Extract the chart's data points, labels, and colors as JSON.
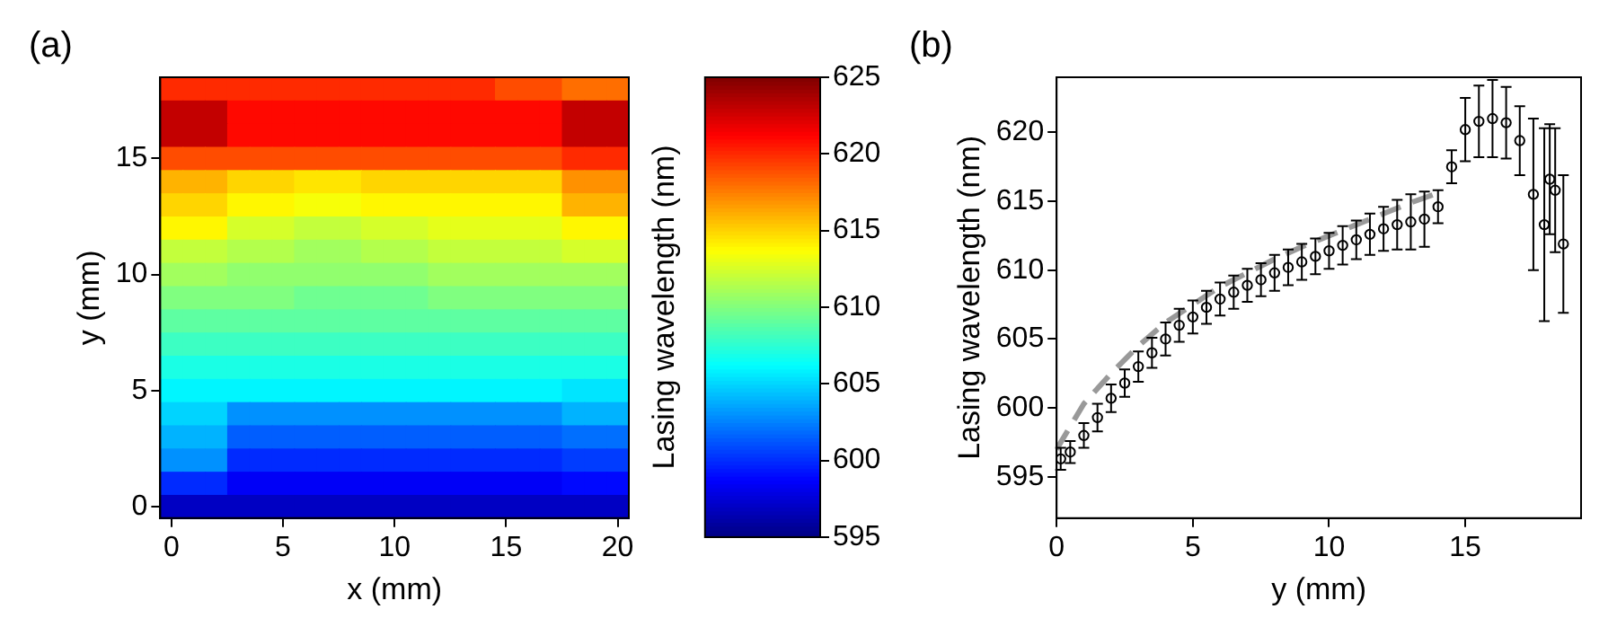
{
  "chart_data": [
    {
      "type": "heatmap",
      "annotations": [
        "(a)"
      ],
      "xlabel": "x (mm)",
      "ylabel": "y (mm)",
      "clabel": "Lasing wavelength (nm)",
      "categories": [
        "0",
        null,
        null,
        null,
        null,
        "5",
        null,
        null,
        null,
        null,
        "10",
        null,
        null,
        null,
        null,
        "15",
        null,
        null,
        null,
        null,
        "20"
      ],
      "y_categories": [
        null,
        null,
        null,
        "15",
        null,
        null,
        null,
        null,
        "10",
        null,
        null,
        null,
        null,
        "5",
        null,
        null,
        null,
        null,
        "0"
      ],
      "cells": [
        [
          620,
          620,
          620,
          620,
          620,
          620,
          620,
          620,
          620,
          620,
          620,
          620,
          620,
          620,
          620,
          619,
          619,
          619,
          618,
          618,
          618
        ],
        [
          623,
          623,
          623,
          621,
          621,
          621,
          621,
          621,
          621,
          621,
          621,
          621,
          621,
          621,
          621,
          621,
          621,
          621,
          623,
          623,
          623
        ],
        [
          623,
          623,
          623,
          621,
          621,
          621,
          621,
          621,
          621,
          621,
          621,
          621,
          621,
          621,
          621,
          621,
          621,
          621,
          623,
          623,
          623
        ],
        [
          619,
          619,
          619,
          619,
          619,
          619,
          619,
          619,
          619,
          619,
          619,
          619,
          619,
          619,
          619,
          619,
          619,
          619,
          620,
          620,
          620
        ],
        [
          616,
          616,
          616,
          615,
          615,
          615,
          614.5,
          614.5,
          614.5,
          615,
          615,
          615,
          615,
          615,
          615,
          615,
          615,
          615,
          617,
          617,
          617
        ],
        [
          615,
          615,
          615,
          614,
          614,
          614,
          613.5,
          613.5,
          613.5,
          614,
          614,
          614,
          614,
          614,
          614,
          614,
          614,
          614,
          616,
          616,
          616
        ],
        [
          614,
          614,
          614,
          612.5,
          612.5,
          612.5,
          612,
          612,
          612,
          612.5,
          612.5,
          612.5,
          613,
          613,
          613,
          613,
          613,
          613,
          614,
          614,
          614
        ],
        [
          612,
          612,
          612,
          611.5,
          611.5,
          611.5,
          611,
          611,
          611,
          611.5,
          611.5,
          611.5,
          612,
          612,
          612,
          612,
          612,
          612,
          612.5,
          612.5,
          612.5
        ],
        [
          611,
          611,
          611,
          610.5,
          610.5,
          610.5,
          610.5,
          610.5,
          610.5,
          610.5,
          610.5,
          610.5,
          611,
          611,
          611,
          611,
          611,
          611,
          611,
          611,
          611
        ],
        [
          610,
          610,
          610,
          610,
          610,
          610,
          609.5,
          609.5,
          609.5,
          609.5,
          609.5,
          609.5,
          610,
          610,
          610,
          610,
          610,
          610,
          610,
          610,
          610
        ],
        [
          609,
          609,
          609,
          609,
          609,
          609,
          609,
          609,
          609,
          609,
          609,
          609,
          609,
          609,
          609,
          609,
          609,
          609,
          609,
          609,
          609
        ],
        [
          608,
          608,
          608,
          608,
          608,
          608,
          608,
          608,
          608,
          608,
          608,
          608,
          608,
          608,
          608,
          608,
          608,
          608,
          608,
          608,
          608
        ],
        [
          607,
          607,
          607,
          607,
          607,
          607,
          607,
          607,
          607,
          607,
          607,
          607,
          607,
          607,
          607,
          607,
          607,
          607,
          607,
          607,
          607
        ],
        [
          606,
          606,
          606,
          606,
          606,
          606,
          606,
          606,
          606,
          606,
          606,
          606,
          606,
          606,
          606,
          606,
          606,
          606,
          605.5,
          605.5,
          605.5
        ],
        [
          605,
          605,
          605,
          603,
          603,
          603,
          603,
          603,
          603,
          603,
          603,
          603,
          603,
          603,
          603,
          603,
          603,
          603,
          604,
          604,
          604
        ],
        [
          604,
          604,
          604,
          601.5,
          601.5,
          601.5,
          601.5,
          601.5,
          601.5,
          601.5,
          601.5,
          601.5,
          601.5,
          601.5,
          601.5,
          601.5,
          601.5,
          601.5,
          602,
          602,
          602
        ],
        [
          603,
          603,
          603,
          600,
          600,
          600,
          600,
          600,
          600,
          600,
          600,
          600,
          600,
          600,
          600,
          600,
          600,
          600,
          600.5,
          600.5,
          600.5
        ],
        [
          600,
          600,
          600,
          598.5,
          598.5,
          598.5,
          598.5,
          598.5,
          598.5,
          598.5,
          598.5,
          598.5,
          598.5,
          598.5,
          598.5,
          598.5,
          598.5,
          598.5,
          599,
          599,
          599
        ],
        [
          597,
          597,
          597,
          597,
          597,
          597,
          597,
          597,
          597,
          597,
          597,
          597,
          597,
          597,
          597,
          597,
          597,
          597,
          597,
          597,
          597
        ]
      ],
      "clim": [
        595,
        625
      ],
      "cticks": [
        595,
        600,
        605,
        610,
        615,
        620,
        625
      ]
    },
    {
      "type": "scatter",
      "annotations": [
        "(b)"
      ],
      "xlabel": "y (mm)",
      "ylabel": "Lasing wavelength (nm)",
      "grid": false,
      "legend": false,
      "xlim": [
        0,
        19.25
      ],
      "xticks": [
        0,
        5,
        10,
        15
      ],
      "ylim": [
        592,
        624
      ],
      "yticks": [
        595,
        600,
        605,
        610,
        615,
        620
      ],
      "series": [
        {
          "color": "#000000",
          "marker": "circle",
          "x": [
            0.15,
            0.5,
            1,
            1.5,
            2,
            2.5,
            3,
            3.5,
            4,
            4.5,
            5,
            5.5,
            6,
            6.5,
            7,
            7.5,
            8,
            8.5,
            9,
            9.5,
            10,
            10.5,
            11,
            11.5,
            12,
            12.5,
            13,
            13.5,
            14,
            14.5,
            15,
            15.5,
            16,
            16.5,
            17,
            17.5,
            17.9,
            18.1,
            18.3,
            18.6
          ],
          "values": [
            596.3,
            596.8,
            598,
            599.3,
            600.7,
            601.8,
            603,
            604,
            605,
            606,
            606.6,
            607.3,
            607.9,
            608.4,
            608.9,
            609.3,
            609.8,
            610.2,
            610.6,
            611,
            611.4,
            611.8,
            612.2,
            612.6,
            613,
            613.3,
            613.5,
            613.7,
            614.6,
            617.5,
            620.2,
            620.8,
            621,
            620.7,
            619.4,
            615.5,
            613.3,
            616.6,
            615.8,
            611.9
          ],
          "errors": [
            0.8,
            0.8,
            0.9,
            1,
            1,
            1,
            1.1,
            1.1,
            1.2,
            1.2,
            1.2,
            1.2,
            1.2,
            1.2,
            1.2,
            1.2,
            1.3,
            1.3,
            1.3,
            1.3,
            1.3,
            1.4,
            1.4,
            1.5,
            1.6,
            1.8,
            2,
            2,
            1.2,
            1.2,
            2.3,
            2.6,
            2.8,
            2.6,
            2.5,
            5.5,
            7,
            4,
            4.5,
            5
          ]
        },
        {
          "type": "line",
          "line_style": "dashed",
          "color": "#999999",
          "x": [
            0,
            1,
            2,
            3,
            4,
            5,
            6,
            7,
            8,
            9,
            10,
            11,
            12,
            13,
            14
          ],
          "values": [
            597,
            600.3,
            602.5,
            604.5,
            606.2,
            607.5,
            608.8,
            609.8,
            610.8,
            611.7,
            612.5,
            613.3,
            614.1,
            614.9,
            615.6
          ]
        }
      ]
    }
  ]
}
